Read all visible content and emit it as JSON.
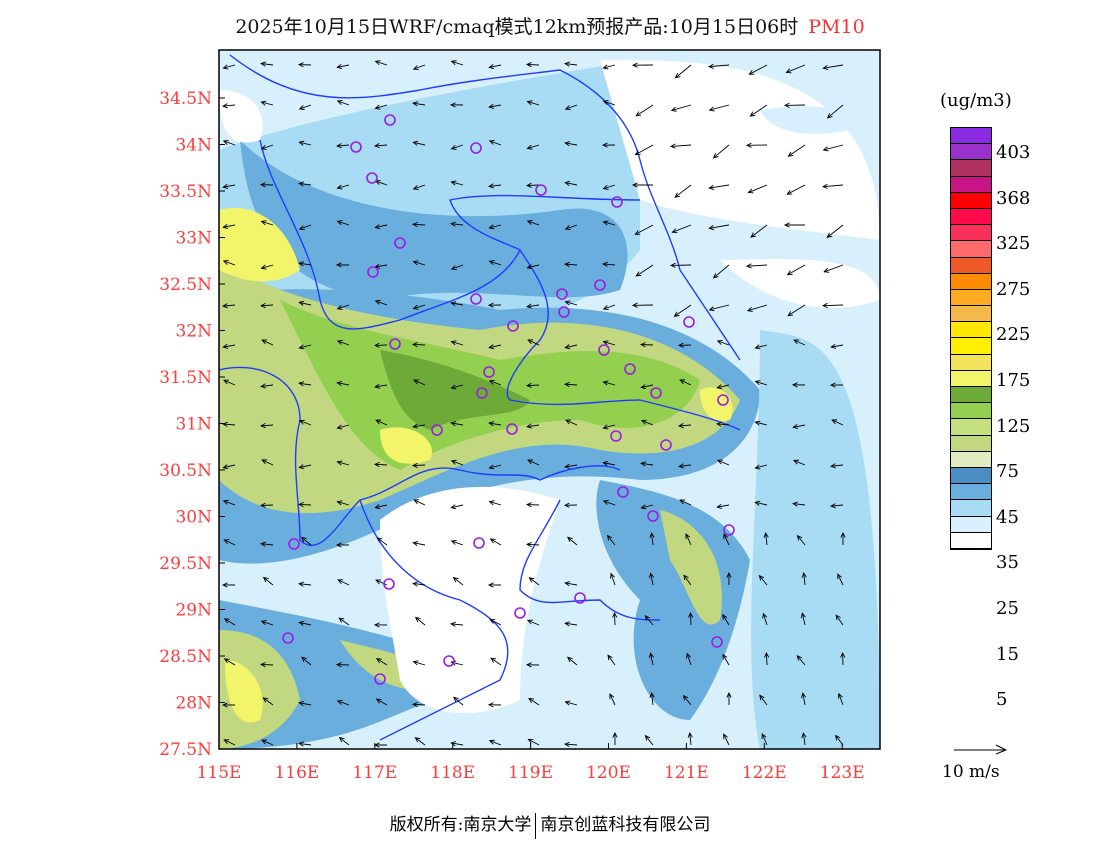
{
  "title": {
    "main": "2025年10月15日WRF/cmaq模式12km预报产品:10月15日06时",
    "pollutant": "PM10"
  },
  "axes": {
    "lon_labels": [
      "115E",
      "116E",
      "117E",
      "118E",
      "119E",
      "120E",
      "121E",
      "122E",
      "123E"
    ],
    "lat_labels": [
      "34.5N",
      "34N",
      "33.5N",
      "33N",
      "32.5N",
      "32N",
      "31.5N",
      "31N",
      "30.5N",
      "30N",
      "29.5N",
      "29N",
      "28.5N",
      "28N",
      "27.5N"
    ],
    "lon_range": [
      115,
      123.5
    ],
    "lat_range": [
      27.5,
      35
    ]
  },
  "colorbar": {
    "unit": "(ug/m3)",
    "labels": [
      "403",
      "368",
      "325",
      "275",
      "225",
      "175",
      "125",
      "75",
      "45",
      "35",
      "25",
      "15",
      "5"
    ],
    "colors": [
      "#8a2be2",
      "#9932cc",
      "#b03060",
      "#c71585",
      "#ff0000",
      "#ff0a4a",
      "#f8305a",
      "#ff6a6a",
      "#f05a28",
      "#ff8c00",
      "#ffaa20",
      "#f5b84a",
      "#ffe800",
      "#fff000",
      "#f2e35c",
      "#f2f56a",
      "#6eaa38",
      "#94d050",
      "#c4e080",
      "#c2d880",
      "#e0ecc0",
      "#4a8ec4",
      "#6aaede",
      "#a8dcf4",
      "#d8f0fc",
      "#ffffff"
    ]
  },
  "vector_legend": "10 m/s",
  "footer": {
    "left": "版权所有:南京大学",
    "right": "南京创蓝科技有限公司"
  }
}
